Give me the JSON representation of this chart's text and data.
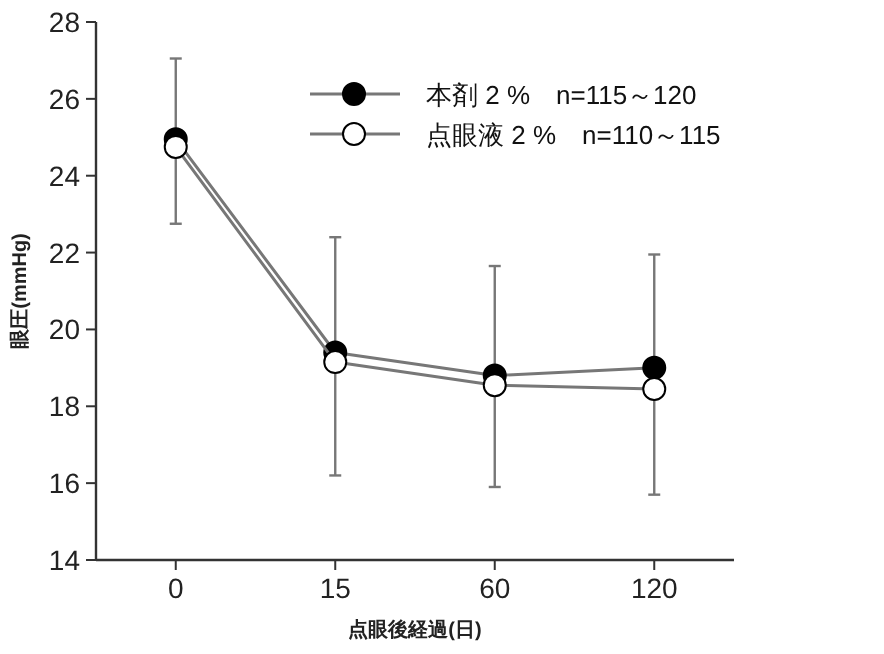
{
  "chart_data": {
    "type": "line",
    "xlabel": "点眼後経過(日)",
    "ylabel": "眼圧(mmHg)",
    "categories": [
      "0",
      "15",
      "60",
      "120"
    ],
    "ylim": [
      14,
      28
    ],
    "yticks": [
      14,
      16,
      18,
      20,
      22,
      24,
      26,
      28
    ],
    "marker": "circle",
    "legend": "top right",
    "grid": false,
    "series": [
      {
        "name": "本剤 2 %　n=115～120",
        "color": "#000000",
        "values": [
          24.95,
          19.4,
          18.8,
          19.0
        ],
        "errors": [
          [
            22.75,
            27.05
          ],
          [
            16.2,
            22.4
          ],
          [
            15.9,
            21.65
          ],
          [
            15.7,
            21.95
          ]
        ]
      },
      {
        "name": "点眼液 2 %　n=110～115",
        "color": "#ffffff",
        "values": [
          24.75,
          19.15,
          18.55,
          18.45
        ]
      }
    ]
  }
}
